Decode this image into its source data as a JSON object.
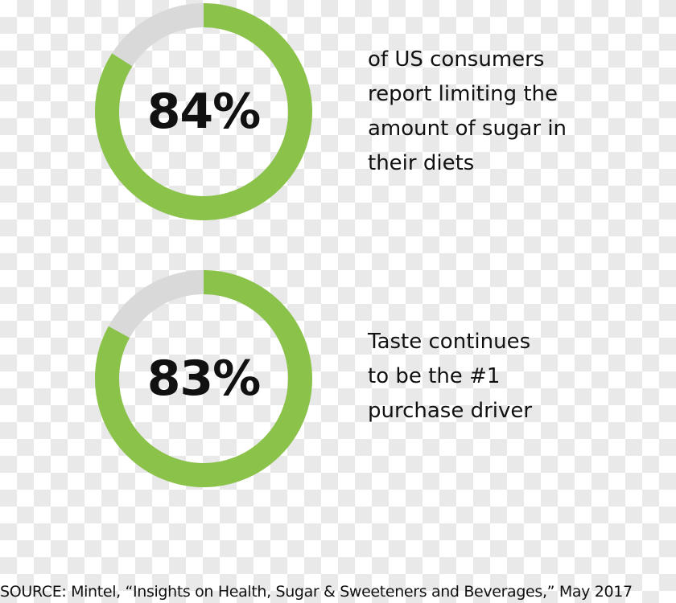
{
  "chart_data": [
    {
      "type": "pie",
      "variant": "donut",
      "value_label": "84%",
      "values": [
        84,
        16
      ],
      "colors": [
        "#8bc34a",
        "#d9d9d9"
      ],
      "description_lines": [
        "of US consumers",
        "report limiting the",
        "amount of sugar in",
        "their diets"
      ]
    },
    {
      "type": "pie",
      "variant": "donut",
      "value_label": "83%",
      "values": [
        83,
        17
      ],
      "colors": [
        "#8bc34a",
        "#d9d9d9"
      ],
      "description_lines": [
        "Taste continues",
        "to be the #1",
        "purchase driver"
      ]
    }
  ],
  "source": "SOURCE: Mintel, “Insights on Health, Sugar & Sweeteners and Beverages,” May 2017"
}
